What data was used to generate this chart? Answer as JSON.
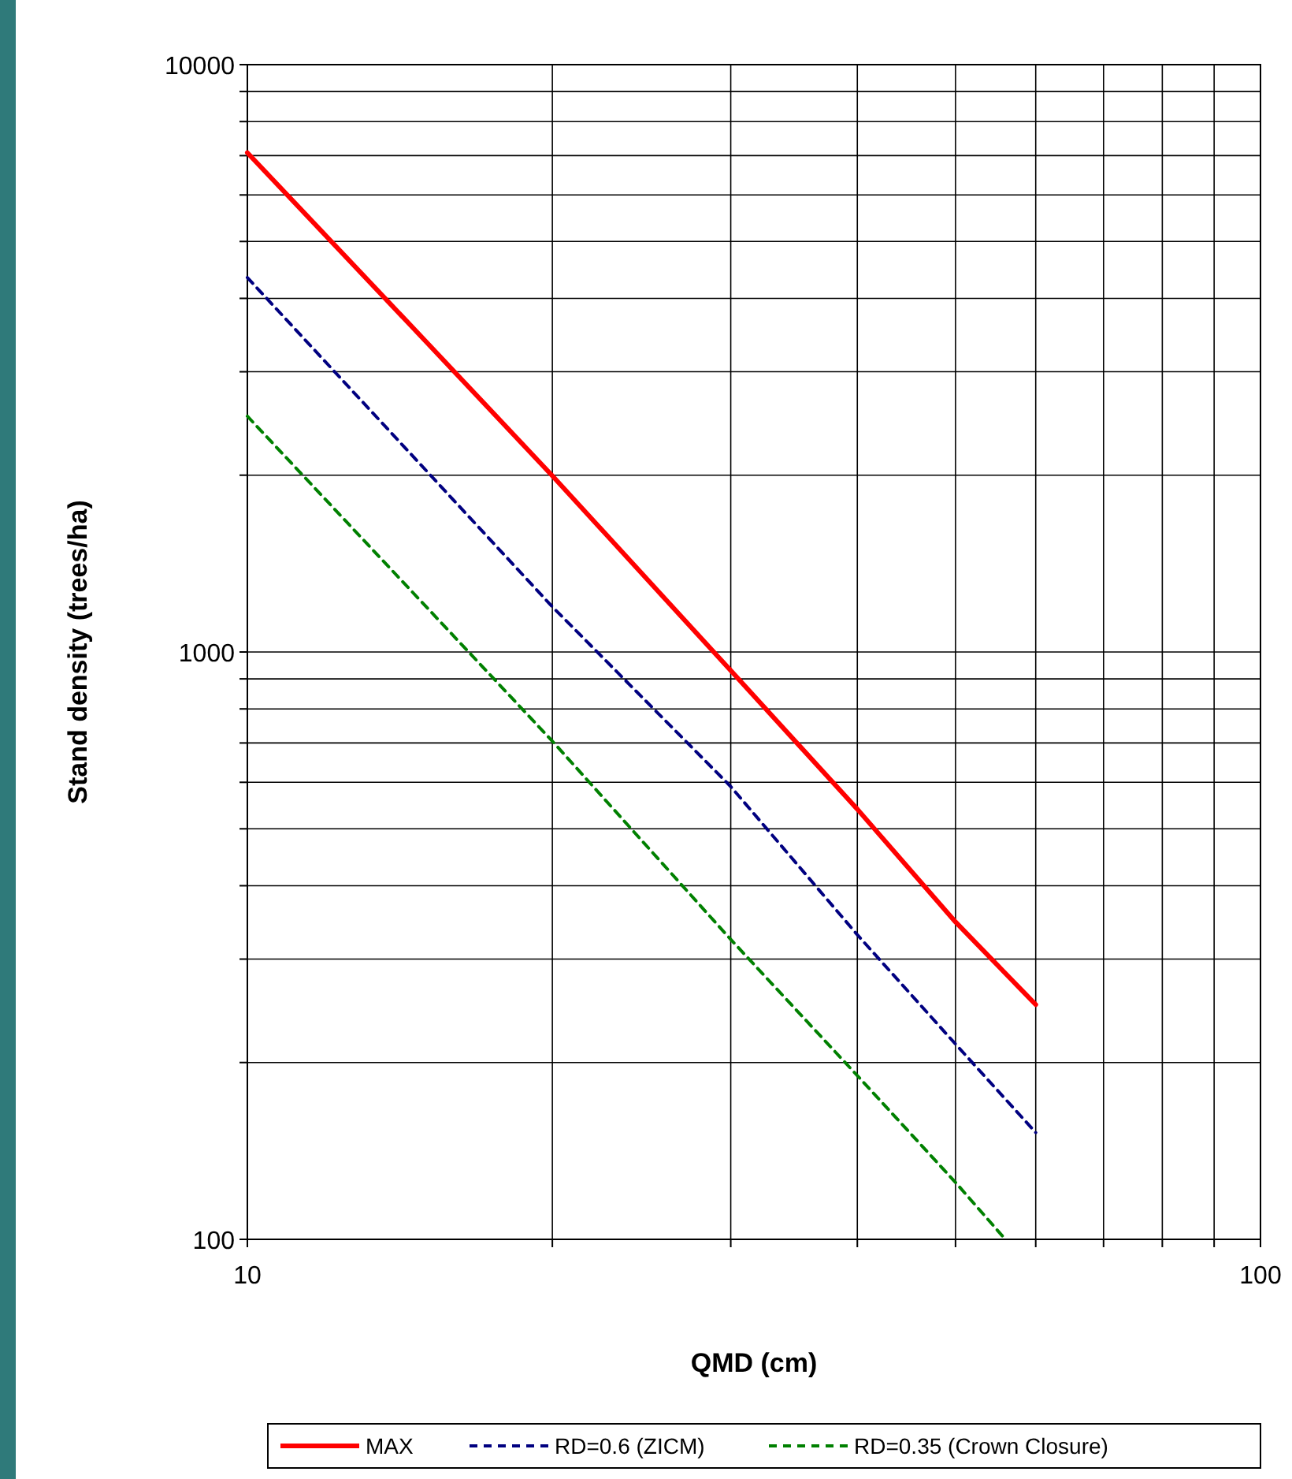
{
  "chart_data": {
    "type": "line",
    "xlabel": "QMD (cm)",
    "ylabel": "Stand density (trees/ha)",
    "log": "xy",
    "grid": true,
    "legend": "bottom",
    "xlim": [
      10,
      100
    ],
    "xticks": [
      10,
      {
        "value": 20,
        "label": null
      },
      {
        "value": 30,
        "label": null
      },
      {
        "value": 40,
        "label": null
      },
      {
        "value": 50,
        "label": null
      },
      {
        "value": 60,
        "label": null
      },
      {
        "value": 70,
        "label": null
      },
      {
        "value": 80,
        "label": null
      },
      {
        "value": 90,
        "label": null
      },
      100
    ],
    "ylim": [
      100,
      10000
    ],
    "yticks": [
      100,
      {
        "value": 200,
        "label": null
      },
      {
        "value": 300,
        "label": null
      },
      {
        "value": 400,
        "label": null
      },
      {
        "value": 500,
        "label": null
      },
      {
        "value": 600,
        "label": null
      },
      {
        "value": 700,
        "label": null
      },
      {
        "value": 800,
        "label": null
      },
      {
        "value": 900,
        "label": null
      },
      1000,
      {
        "value": 2000,
        "label": null
      },
      {
        "value": 3000,
        "label": null
      },
      {
        "value": 4000,
        "label": null
      },
      {
        "value": 5000,
        "label": null
      },
      {
        "value": 6000,
        "label": null
      },
      {
        "value": 7000,
        "label": null
      },
      {
        "value": 8000,
        "label": null
      },
      {
        "value": 9000,
        "label": null
      },
      10000
    ],
    "series": [
      {
        "name": "MAX",
        "color": "#ff0000",
        "line_style": "solid",
        "x": [
          10,
          15,
          20,
          30,
          40,
          50,
          60
        ],
        "values": [
          7080,
          3380,
          1995,
          930,
          540,
          347,
          251
        ]
      },
      {
        "name": "RD=0.6 (ZICM)",
        "color": "#000080",
        "line_style": "dashed",
        "x": [
          10,
          20,
          30,
          40,
          50,
          60
        ],
        "values": [
          4340,
          1194,
          590,
          330,
          215,
          152
        ]
      },
      {
        "name": "RD=0.35 (Crown Closure)",
        "color": "#008000",
        "line_style": "dashed",
        "x": [
          10,
          20,
          30,
          40,
          50,
          56
        ],
        "values": [
          2520,
          705,
          324,
          190,
          125,
          100
        ]
      }
    ]
  }
}
